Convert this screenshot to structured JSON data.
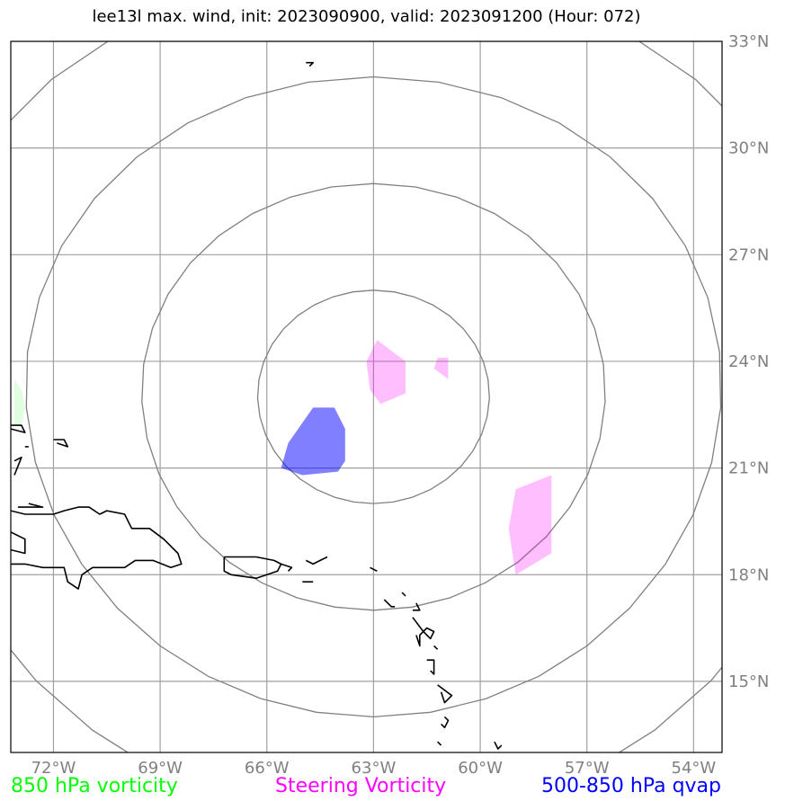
{
  "title": "lee13l max. wind, init: 2023090900, valid: 2023091200 (Hour: 072)",
  "map": {
    "lon_range": [
      -73.2,
      -53.2
    ],
    "lat_range": [
      13.0,
      33.0
    ],
    "center": {
      "lon": -63.0,
      "lat": 23.0
    },
    "range_rings_deg": [
      3,
      6,
      9,
      12
    ],
    "gridlines": true,
    "colors": {
      "frame": "#000000",
      "grid": "#a0a0a0",
      "rings": "#808080",
      "coastline": "#000000",
      "vort850": "#00ff00",
      "steering": "#ff00ff",
      "qvap": "#0000ff"
    }
  },
  "x_ticks": [
    {
      "lon": -72,
      "label": "72°W"
    },
    {
      "lon": -69,
      "label": "69°W"
    },
    {
      "lon": -66,
      "label": "66°W"
    },
    {
      "lon": -63,
      "label": "63°W"
    },
    {
      "lon": -60,
      "label": "60°W"
    },
    {
      "lon": -57,
      "label": "57°W"
    },
    {
      "lon": -54,
      "label": "54°W"
    }
  ],
  "y_ticks": [
    {
      "lat": 15,
      "label": "15°N"
    },
    {
      "lat": 18,
      "label": "18°N"
    },
    {
      "lat": 21,
      "label": "21°N"
    },
    {
      "lat": 24,
      "label": "24°N"
    },
    {
      "lat": 27,
      "label": "27°N"
    },
    {
      "lat": 30,
      "label": "30°N"
    },
    {
      "lat": 33,
      "label": "33°N"
    }
  ],
  "fields": {
    "qvap": [
      [
        [
          -64.7,
          22.7
        ],
        [
          -64.1,
          22.7
        ],
        [
          -63.8,
          22.1
        ],
        [
          -63.8,
          21.2
        ],
        [
          -64.0,
          20.9
        ],
        [
          -65.0,
          20.8
        ],
        [
          -65.6,
          21.0
        ],
        [
          -65.4,
          21.7
        ]
      ]
    ],
    "steering": [
      [
        [
          -62.9,
          24.6
        ],
        [
          -62.5,
          24.3
        ],
        [
          -62.1,
          24.0
        ],
        [
          -62.1,
          23.1
        ],
        [
          -62.8,
          22.8
        ],
        [
          -63.1,
          23.2
        ],
        [
          -63.2,
          24.0
        ]
      ],
      [
        [
          -61.2,
          24.1
        ],
        [
          -60.9,
          24.1
        ],
        [
          -60.9,
          23.5
        ],
        [
          -61.3,
          23.8
        ]
      ],
      [
        [
          -59.0,
          20.4
        ],
        [
          -58.0,
          20.8
        ],
        [
          -58.0,
          18.6
        ],
        [
          -59.0,
          18.0
        ],
        [
          -59.2,
          19.3
        ]
      ]
    ],
    "vort850": [
      [
        [
          -73.1,
          23.5
        ],
        [
          -72.9,
          23.2
        ],
        [
          -72.8,
          22.7
        ],
        [
          -72.9,
          22.2
        ],
        [
          -73.1,
          22.2
        ]
      ]
    ]
  },
  "coastlines": [
    [
      [
        -73.2,
        22.2
      ],
      [
        -72.9,
        22.2
      ],
      [
        -72.8,
        22.0
      ],
      [
        -73.2,
        22.1
      ]
    ],
    [
      [
        -73.1,
        21.2
      ],
      [
        -72.9,
        21.3
      ],
      [
        -73.1,
        20.8
      ]
    ],
    [
      [
        -72.8,
        21.6
      ],
      [
        -72.7,
        21.6
      ]
    ],
    [
      [
        -72.0,
        21.8
      ],
      [
        -71.7,
        21.8
      ],
      [
        -71.6,
        21.6
      ],
      [
        -71.9,
        21.7
      ]
    ],
    [
      [
        -73.0,
        19.9
      ],
      [
        -72.3,
        19.9
      ],
      [
        -72.7,
        20.0
      ]
    ],
    [
      [
        -73.2,
        19.8
      ],
      [
        -72.8,
        19.7
      ],
      [
        -72.0,
        19.7
      ],
      [
        -71.7,
        19.8
      ],
      [
        -71.3,
        19.9
      ],
      [
        -71.0,
        19.9
      ],
      [
        -70.7,
        19.7
      ],
      [
        -70.5,
        19.8
      ],
      [
        -70.0,
        19.7
      ],
      [
        -69.8,
        19.3
      ],
      [
        -69.3,
        19.3
      ],
      [
        -68.9,
        19.0
      ],
      [
        -68.5,
        18.6
      ],
      [
        -68.4,
        18.3
      ],
      [
        -68.7,
        18.2
      ],
      [
        -69.2,
        18.4
      ],
      [
        -69.7,
        18.4
      ],
      [
        -70.0,
        18.2
      ],
      [
        -70.5,
        18.2
      ],
      [
        -70.9,
        18.2
      ],
      [
        -71.2,
        18.0
      ],
      [
        -71.3,
        17.6
      ],
      [
        -71.6,
        17.8
      ],
      [
        -71.7,
        18.2
      ],
      [
        -72.3,
        18.2
      ],
      [
        -72.8,
        18.3
      ],
      [
        -73.2,
        18.3
      ]
    ],
    [
      [
        -73.2,
        19.2
      ],
      [
        -72.8,
        19.0
      ],
      [
        -72.8,
        18.6
      ],
      [
        -73.2,
        18.7
      ]
    ],
    [
      [
        -67.2,
        18.5
      ],
      [
        -66.3,
        18.5
      ],
      [
        -65.8,
        18.4
      ],
      [
        -65.6,
        18.3
      ],
      [
        -65.7,
        18.1
      ],
      [
        -66.3,
        17.9
      ],
      [
        -67.0,
        18.0
      ],
      [
        -67.2,
        18.1
      ],
      [
        -67.2,
        18.5
      ]
    ],
    [
      [
        -65.4,
        18.1
      ],
      [
        -65.3,
        18.2
      ],
      [
        -65.6,
        18.3
      ]
    ],
    [
      [
        -64.9,
        18.4
      ],
      [
        -64.7,
        18.3
      ],
      [
        -64.5,
        18.4
      ],
      [
        -64.3,
        18.5
      ]
    ],
    [
      [
        -65.0,
        17.8
      ],
      [
        -64.7,
        17.8
      ]
    ],
    [
      [
        -63.1,
        18.2
      ],
      [
        -62.9,
        18.1
      ]
    ],
    [
      [
        -62.2,
        17.5
      ],
      [
        -62.1,
        17.4
      ]
    ],
    [
      [
        -62.7,
        17.3
      ],
      [
        -62.5,
        17.1
      ],
      [
        -62.4,
        17.1
      ]
    ],
    [
      [
        -61.8,
        17.2
      ],
      [
        -61.7,
        17.0
      ],
      [
        -61.9,
        17.0
      ]
    ],
    [
      [
        -61.9,
        16.8
      ],
      [
        -61.6,
        16.4
      ],
      [
        -61.4,
        16.2
      ],
      [
        -61.3,
        16.4
      ],
      [
        -61.5,
        16.5
      ],
      [
        -61.7,
        16.3
      ],
      [
        -61.7,
        16.0
      ],
      [
        -61.8,
        16.3
      ]
    ],
    [
      [
        -61.3,
        16.0
      ],
      [
        -61.2,
        15.9
      ]
    ],
    [
      [
        -61.5,
        15.6
      ],
      [
        -61.3,
        15.6
      ],
      [
        -61.3,
        15.2
      ],
      [
        -61.4,
        15.3
      ]
    ],
    [
      [
        -61.2,
        14.9
      ],
      [
        -60.8,
        14.6
      ],
      [
        -61.0,
        14.4
      ],
      [
        -61.1,
        14.7
      ]
    ],
    [
      [
        -61.0,
        14.0
      ],
      [
        -60.9,
        13.9
      ],
      [
        -61.0,
        13.7
      ],
      [
        -61.1,
        13.8
      ]
    ],
    [
      [
        -61.2,
        13.3
      ],
      [
        -61.1,
        13.2
      ]
    ],
    [
      [
        -59.6,
        13.3
      ],
      [
        -59.5,
        13.1
      ],
      [
        -59.4,
        13.2
      ]
    ],
    [
      [
        -64.9,
        32.4
      ],
      [
        -64.7,
        32.4
      ],
      [
        -64.8,
        32.3
      ]
    ]
  ],
  "legend": {
    "vort850_label": "850 hPa vorticity",
    "steering_label": "Steering Vorticity",
    "qvap_label": "500-850 hPa qvap"
  }
}
